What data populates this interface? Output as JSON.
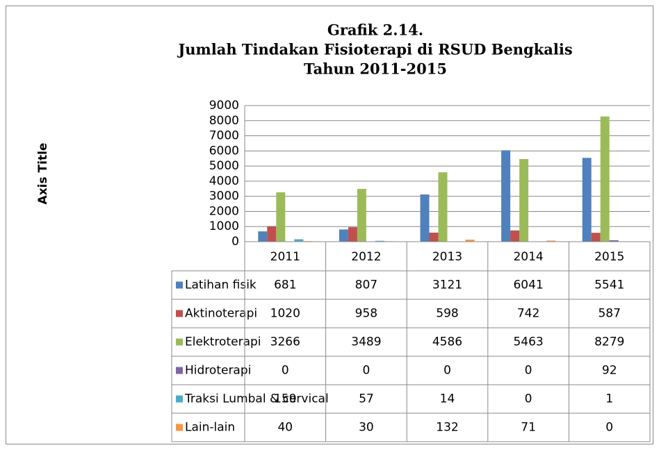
{
  "chart_data": {
    "type": "bar",
    "title": [
      "Grafik 2.14.",
      "Jumlah Tindakan Fisioterapi di RSUD Bengkalis",
      "Tahun 2011-2015"
    ],
    "y_axis_label": "Axis Title",
    "categories": [
      "2011",
      "2012",
      "2013",
      "2014",
      "2015"
    ],
    "series": [
      {
        "name": "Latihan fisik",
        "color": "#4f81bd",
        "values": [
          681,
          807,
          3121,
          6041,
          5541
        ]
      },
      {
        "name": "Aktinoterapi",
        "color": "#c0504d",
        "values": [
          1020,
          958,
          598,
          742,
          587
        ]
      },
      {
        "name": "Elektroterapi",
        "color": "#9bbb59",
        "values": [
          3266,
          3489,
          4586,
          5463,
          8279
        ]
      },
      {
        "name": "Hidroterapi",
        "color": "#8064a2",
        "values": [
          0,
          0,
          0,
          0,
          92
        ]
      },
      {
        "name": "Traksi Lumbal & cervical",
        "color": "#4bacc6",
        "values": [
          159,
          57,
          14,
          0,
          1
        ]
      },
      {
        "name": "Lain-lain",
        "color": "#f79646",
        "values": [
          40,
          30,
          132,
          71,
          0
        ]
      }
    ],
    "ylim": [
      0,
      9000
    ],
    "yticks": [
      0,
      1000,
      2000,
      3000,
      4000,
      5000,
      6000,
      7000,
      8000,
      9000
    ],
    "grid": true,
    "data_table": true
  }
}
